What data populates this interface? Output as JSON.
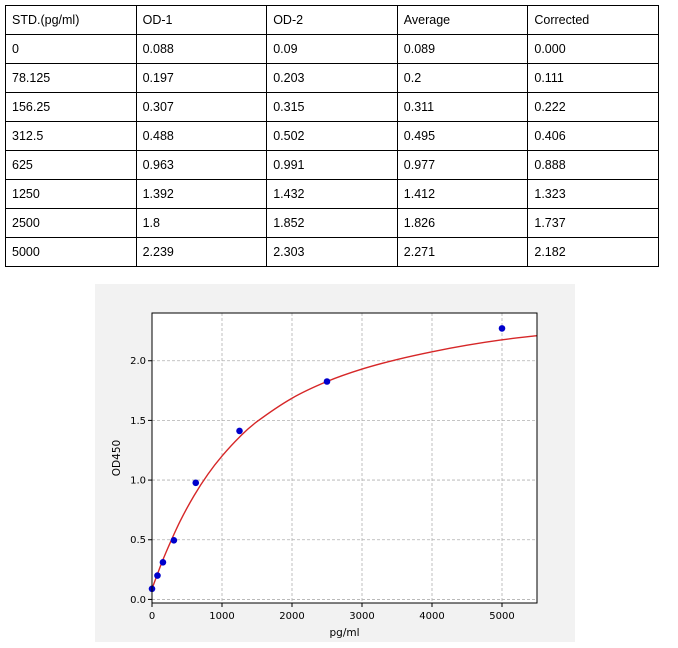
{
  "table": {
    "headers": [
      "STD.(pg/ml)",
      "OD-1",
      "OD-2",
      "Average",
      "Corrected"
    ],
    "rows": [
      [
        "0",
        "0.088",
        "0.09",
        "0.089",
        "0.000"
      ],
      [
        "78.125",
        "0.197",
        "0.203",
        "0.2",
        "0.111"
      ],
      [
        "156.25",
        "0.307",
        "0.315",
        "0.311",
        "0.222"
      ],
      [
        "312.5",
        "0.488",
        "0.502",
        "0.495",
        "0.406"
      ],
      [
        "625",
        "0.963",
        "0.991",
        "0.977",
        "0.888"
      ],
      [
        "1250",
        "1.392",
        "1.432",
        "1.412",
        "1.323"
      ],
      [
        "2500",
        "1.8",
        "1.852",
        "1.826",
        "1.737"
      ],
      [
        "5000",
        "2.239",
        "2.303",
        "2.271",
        "2.182"
      ]
    ]
  },
  "chart_data": {
    "type": "scatter",
    "title": "",
    "xlabel": "pg/ml",
    "ylabel": "OD450",
    "xlim": [
      0,
      5500
    ],
    "ylim": [
      -0.03,
      2.4
    ],
    "xticks": [
      0,
      1000,
      2000,
      3000,
      4000,
      5000
    ],
    "xtick_labels": [
      "0",
      "1000",
      "2000",
      "3000",
      "4000",
      "5000"
    ],
    "yticks": [
      0.0,
      0.5,
      1.0,
      1.5,
      2.0
    ],
    "ytick_labels": [
      "0.0",
      "0.5",
      "1.0",
      "1.5",
      "2.0"
    ],
    "grid": true,
    "points": {
      "x": [
        0,
        78.125,
        156.25,
        312.5,
        625,
        1250,
        2500,
        5000
      ],
      "y": [
        0.089,
        0.2,
        0.311,
        0.495,
        0.977,
        1.412,
        1.826,
        2.271
      ],
      "color": "#0000cc"
    },
    "fit_curve": {
      "x": [
        0,
        100,
        200,
        400,
        600,
        800,
        1000,
        1250,
        1500,
        2000,
        2500,
        3000,
        3500,
        4000,
        4500,
        5000,
        5500
      ],
      "y": [
        0.089,
        0.247,
        0.394,
        0.653,
        0.869,
        1.05,
        1.201,
        1.36,
        1.49,
        1.686,
        1.826,
        1.93,
        2.01,
        2.075,
        2.13,
        2.175,
        2.21
      ],
      "color": "#d62728"
    }
  }
}
